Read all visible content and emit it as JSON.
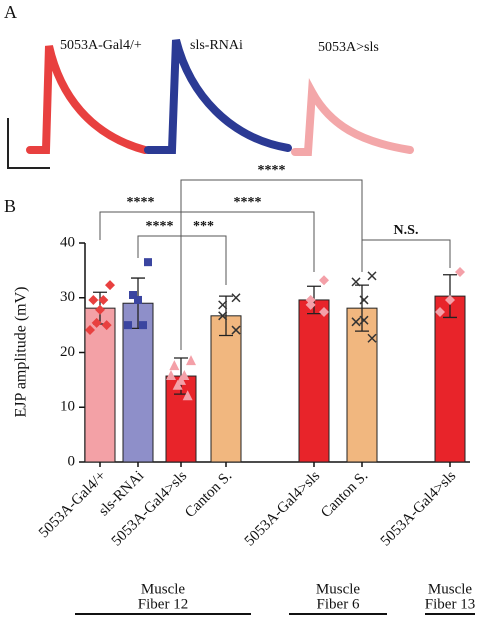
{
  "panel_a": {
    "label": "A",
    "traces": [
      {
        "label": "5053A-Gal4/+",
        "color": "#e8403f"
      },
      {
        "label": "sls-RNAi",
        "color": "#2b3a94"
      },
      {
        "label": "5053A>sls",
        "color": "#f3a7a9"
      }
    ]
  },
  "chart_data": {
    "type": "bar",
    "panel_label": "B",
    "y_label": "EJP amplitude (mV)",
    "ylim": [
      0,
      40
    ],
    "yticks": [
      0,
      10,
      20,
      30,
      40
    ],
    "categories": [
      "5053A-Gal4/+",
      "sls-RNAi",
      "5053A-Gal4>sls",
      "Canton S.",
      "5053A-Gal4>sls",
      "Canton S.",
      "5053A-Gal4>sls"
    ],
    "values": [
      28.1,
      29.0,
      15.7,
      26.7,
      29.6,
      28.1,
      30.3
    ],
    "errors": [
      2.9,
      4.6,
      3.3,
      3.6,
      2.5,
      4.2,
      3.9
    ],
    "colors": [
      "#f3a1a6",
      "#8e8fc9",
      "#e8242a",
      "#f1b77f",
      "#e8242a",
      "#f1b77f",
      "#e8242a"
    ],
    "points": [
      {
        "marker": "diamond",
        "color": "#e8403f",
        "values": [
          32.3,
          29.6,
          29.6,
          27.8,
          25.4,
          25.0,
          24.1
        ]
      },
      {
        "marker": "square",
        "color": "#3a45a0",
        "values": [
          36.5,
          30.5,
          29.6,
          25.0,
          25.0
        ]
      },
      {
        "marker": "triangle",
        "color": "#f4a0a8",
        "values": [
          18.6,
          17.7,
          15.9,
          15.0,
          14.1,
          12.2,
          15.9
        ]
      },
      {
        "marker": "x",
        "color": "#333333",
        "values": [
          30.0,
          28.7,
          26.7,
          24.1
        ]
      },
      {
        "marker": "diamond",
        "color": "#f4a0a8",
        "values": [
          33.2,
          29.6,
          28.7,
          27.4
        ]
      },
      {
        "marker": "x",
        "color": "#333333",
        "values": [
          34.0,
          32.9,
          29.6,
          25.9,
          25.6,
          22.6
        ]
      },
      {
        "marker": "diamond",
        "color": "#f4a0a8",
        "values": [
          34.7,
          29.6,
          27.4
        ]
      }
    ],
    "significance": [
      {
        "label": "****",
        "between": [
          0,
          2
        ]
      },
      {
        "label": "****",
        "between": [
          1,
          2
        ]
      },
      {
        "label": "***",
        "between": [
          2,
          3
        ]
      },
      {
        "label": "****",
        "between": [
          2,
          4
        ]
      },
      {
        "label": "****",
        "between": [
          2,
          5
        ]
      },
      {
        "label": "N.S.",
        "between": [
          5,
          6
        ]
      }
    ],
    "groups": [
      {
        "label": [
          "Muscle",
          "Fiber 12"
        ],
        "span": [
          0,
          3
        ]
      },
      {
        "label": [
          "Muscle",
          "Fiber 6"
        ],
        "span": [
          4,
          5
        ]
      },
      {
        "label": [
          "Muscle",
          "Fiber 13"
        ],
        "span": [
          6,
          6
        ]
      }
    ]
  }
}
